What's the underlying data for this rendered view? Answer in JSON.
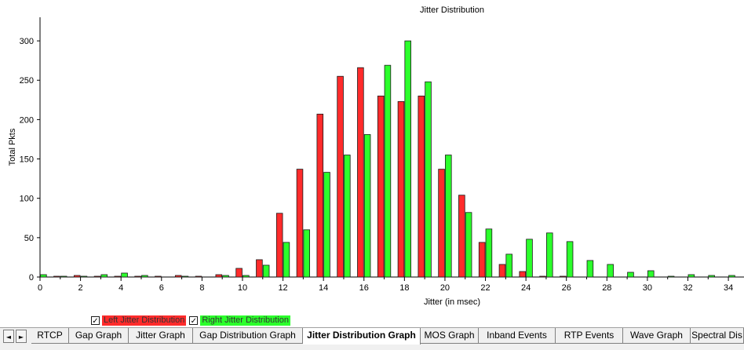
{
  "chart_data": {
    "type": "bar",
    "title": "Jitter Distribution",
    "xlabel": "Jitter (in msec)",
    "ylabel": "Total Pkts",
    "xlim": [
      0,
      34.5
    ],
    "ylim": [
      0,
      330
    ],
    "x_ticks": [
      0,
      2,
      4,
      6,
      8,
      10,
      12,
      14,
      16,
      18,
      20,
      22,
      24,
      26,
      28,
      30,
      32,
      34
    ],
    "y_ticks": [
      0,
      50,
      100,
      150,
      200,
      250,
      300
    ],
    "grid": false,
    "legend_position": "bottom-left",
    "x": [
      0,
      1,
      2,
      3,
      4,
      5,
      6,
      7,
      8,
      9,
      10,
      11,
      12,
      13,
      14,
      15,
      16,
      17,
      18,
      19,
      20,
      21,
      22,
      23,
      24,
      25,
      26,
      27,
      28,
      29,
      30,
      31,
      32,
      33,
      34
    ],
    "series": [
      {
        "name": "Left Jitter Distribution",
        "color": "#ff2b2b",
        "values": [
          0,
          1,
          2,
          1,
          1,
          1,
          1,
          2,
          1,
          3,
          11,
          22,
          81,
          137,
          207,
          255,
          266,
          230,
          223,
          230,
          137,
          104,
          44,
          16,
          7,
          1,
          1,
          0,
          0,
          0,
          0,
          0,
          0,
          0,
          0
        ]
      },
      {
        "name": "Right Jitter Distribution",
        "color": "#2bff2b",
        "values": [
          3,
          1,
          1,
          3,
          5,
          2,
          0,
          1,
          0,
          2,
          2,
          15,
          44,
          60,
          133,
          155,
          181,
          269,
          300,
          248,
          155,
          82,
          61,
          29,
          48,
          56,
          45,
          21,
          16,
          6,
          8,
          1,
          3,
          2,
          2
        ]
      }
    ]
  },
  "legend": {
    "items": [
      {
        "label": "Left Jitter Distribution",
        "checked": "✓",
        "bg": "#ff2b2b"
      },
      {
        "label": "Right Jitter Distribution",
        "checked": "✓",
        "bg": "#2bff2b"
      }
    ]
  },
  "tabbar": {
    "prev_icon": "◄",
    "next_icon": "►",
    "tabs": [
      {
        "label": "RTCP",
        "active": false
      },
      {
        "label": "Gap Graph",
        "active": false
      },
      {
        "label": "Jitter Graph",
        "active": false
      },
      {
        "label": "Gap Distribution Graph",
        "active": false
      },
      {
        "label": "Jitter Distribution Graph",
        "active": true
      },
      {
        "label": "MOS Graph",
        "active": false
      },
      {
        "label": "Inband Events",
        "active": false
      },
      {
        "label": "RTP Events",
        "active": false
      },
      {
        "label": "Wave Graph",
        "active": false
      },
      {
        "label": "Spectral Dis",
        "active": false
      }
    ]
  }
}
